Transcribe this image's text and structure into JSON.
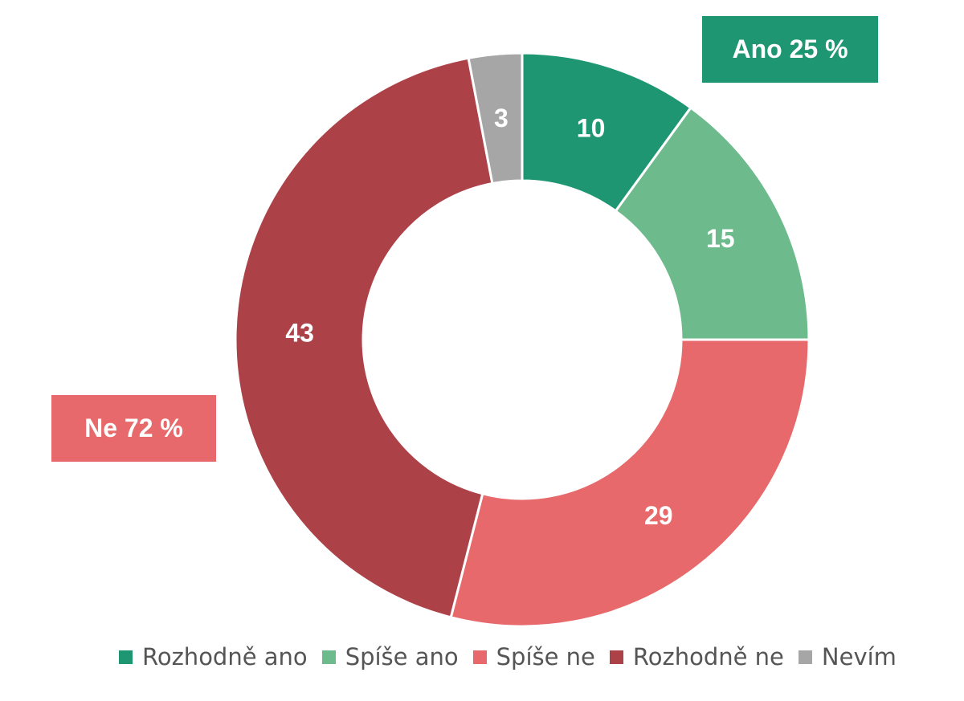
{
  "chart_data": {
    "type": "pie",
    "variant": "donut",
    "unit": "%",
    "categories": [
      "Rozhodně ano",
      "Spíše ano",
      "Spíše ne",
      "Rozhodně ne",
      "Nevím"
    ],
    "values": [
      10,
      15,
      29,
      43,
      3
    ],
    "data_labels": [
      "10",
      "15",
      "29",
      "43",
      "3"
    ],
    "colors": [
      "#1e9672",
      "#6dbb8d",
      "#e8696b",
      "#ad4148",
      "#a6a6a6"
    ],
    "start_angle": "12 o'clock",
    "direction": "clockwise",
    "legend": {
      "placement": "bottom",
      "entries": [
        "Rozhodně ano",
        "Spíše ano",
        "Spíše ne",
        "Rozhodně ne",
        "Nevím"
      ]
    },
    "annotations": [
      {
        "text": "Ano 25 %",
        "color": "#1e9672",
        "placement": "top-right"
      },
      {
        "text": "Ne 72 %",
        "color": "#e8696b",
        "placement": "left"
      }
    ]
  }
}
